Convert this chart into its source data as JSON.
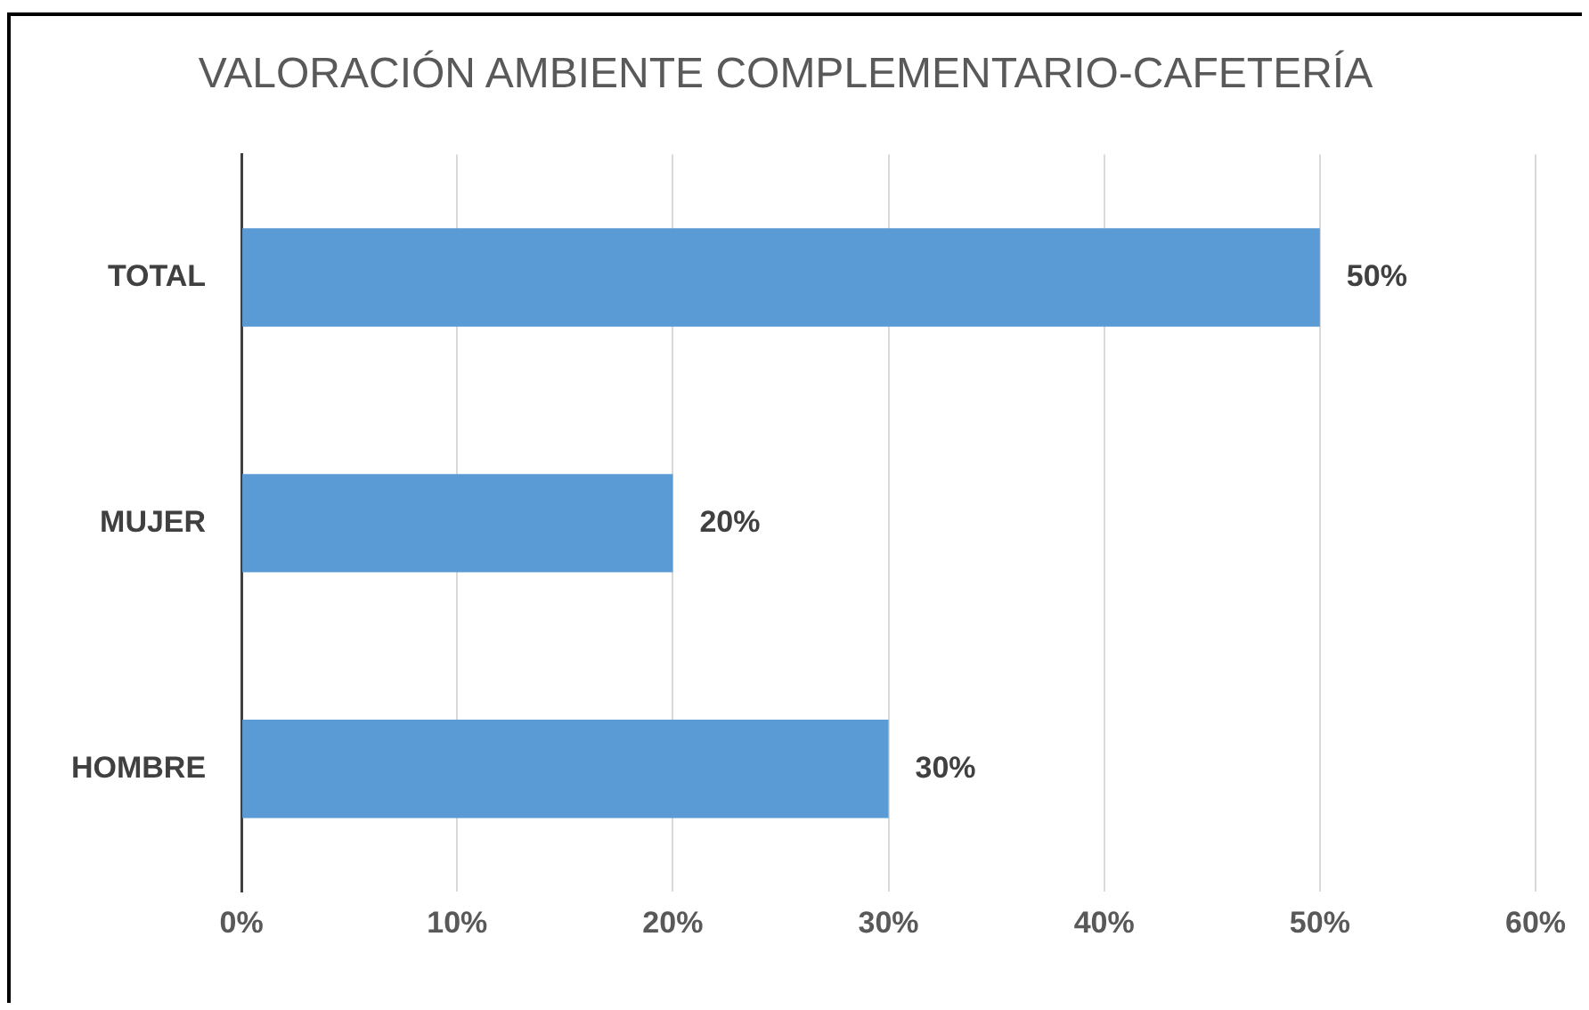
{
  "chart_data": {
    "type": "bar",
    "orientation": "horizontal",
    "title": "VALORACIÓN AMBIENTE COMPLEMENTARIO-CAFETERÍA",
    "categories": [
      "TOTAL",
      "MUJER",
      "HOMBRE"
    ],
    "values": [
      50,
      20,
      30
    ],
    "color": "#5b9bd5",
    "value_labels": [
      "50%",
      "20%",
      "30%"
    ],
    "xlim": [
      0,
      60
    ],
    "xticks": [
      {
        "value": 0,
        "label": "0%"
      },
      {
        "value": 10,
        "label": "10%"
      },
      {
        "value": 20,
        "label": "20%"
      },
      {
        "value": 30,
        "label": "30%"
      },
      {
        "value": 40,
        "label": "40%"
      },
      {
        "value": 50,
        "label": "50%"
      },
      {
        "value": 60,
        "label": "60%"
      }
    ],
    "grid": "x",
    "legend": false
  }
}
